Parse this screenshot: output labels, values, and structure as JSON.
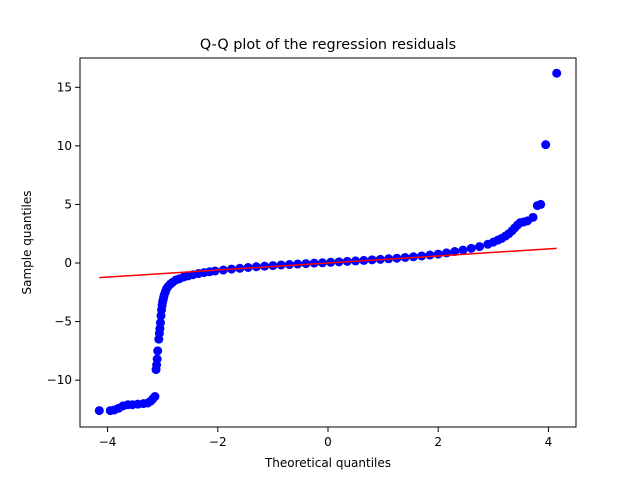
{
  "chart_data": {
    "type": "scatter",
    "title": "Q-Q plot of the regression residuals",
    "xlabel": "Theoretical quantiles",
    "ylabel": "Sample quantiles",
    "xlim": [
      -4.5,
      4.5
    ],
    "ylim": [
      -14.0,
      17.5
    ],
    "xticks": [
      -4,
      -2,
      0,
      2,
      4
    ],
    "xtick_labels": [
      "−4",
      "−2",
      "0",
      "2",
      "4"
    ],
    "yticks": [
      -10,
      -5,
      0,
      5,
      10,
      15
    ],
    "ytick_labels": [
      "−10",
      "−5",
      "0",
      "5",
      "10",
      "15"
    ],
    "grid": false,
    "legend": "none",
    "series": [
      {
        "kind": "scatter",
        "color": "#0000ff",
        "points": [
          [
            -4.15,
            -12.6
          ],
          [
            -3.95,
            -12.6
          ],
          [
            -3.88,
            -12.55
          ],
          [
            -3.8,
            -12.4
          ],
          [
            -3.72,
            -12.2
          ],
          [
            -3.63,
            -12.1
          ],
          [
            -3.55,
            -12.1
          ],
          [
            -3.45,
            -12.05
          ],
          [
            -3.35,
            -12.0
          ],
          [
            -3.27,
            -11.95
          ],
          [
            -3.22,
            -11.8
          ],
          [
            -3.18,
            -11.6
          ],
          [
            -3.14,
            -11.4
          ],
          [
            -3.12,
            -9.1
          ],
          [
            -3.11,
            -8.7
          ],
          [
            -3.1,
            -8.2
          ],
          [
            -3.09,
            -7.5
          ],
          [
            -3.07,
            -6.5
          ],
          [
            -3.06,
            -6.0
          ],
          [
            -3.05,
            -5.6
          ],
          [
            -3.04,
            -5.1
          ],
          [
            -3.03,
            -4.5
          ],
          [
            -3.02,
            -4.0
          ],
          [
            -3.01,
            -3.6
          ],
          [
            -3.0,
            -3.3
          ],
          [
            -2.99,
            -3.1
          ],
          [
            -2.98,
            -2.9
          ],
          [
            -2.97,
            -2.7
          ],
          [
            -2.95,
            -2.45
          ],
          [
            -2.93,
            -2.2
          ],
          [
            -2.9,
            -2.0
          ],
          [
            -2.86,
            -1.8
          ],
          [
            -2.82,
            -1.65
          ],
          [
            -2.76,
            -1.45
          ],
          [
            -2.7,
            -1.35
          ],
          [
            -2.62,
            -1.2
          ],
          [
            -2.54,
            -1.1
          ],
          [
            -2.45,
            -1.0
          ],
          [
            -2.35,
            -0.9
          ],
          [
            -2.25,
            -0.82
          ],
          [
            -2.15,
            -0.75
          ],
          [
            -2.05,
            -0.68
          ],
          [
            -1.9,
            -0.6
          ],
          [
            -1.75,
            -0.52
          ],
          [
            -1.6,
            -0.45
          ],
          [
            -1.45,
            -0.38
          ],
          [
            -1.3,
            -0.32
          ],
          [
            -1.15,
            -0.27
          ],
          [
            -1.0,
            -0.22
          ],
          [
            -0.85,
            -0.17
          ],
          [
            -0.7,
            -0.13
          ],
          [
            -0.55,
            -0.09
          ],
          [
            -0.4,
            -0.05
          ],
          [
            -0.25,
            -0.01
          ],
          [
            -0.1,
            0.02
          ],
          [
            0.05,
            0.06
          ],
          [
            0.2,
            0.1
          ],
          [
            0.35,
            0.14
          ],
          [
            0.5,
            0.18
          ],
          [
            0.65,
            0.22
          ],
          [
            0.8,
            0.27
          ],
          [
            0.95,
            0.31
          ],
          [
            1.1,
            0.36
          ],
          [
            1.25,
            0.41
          ],
          [
            1.4,
            0.47
          ],
          [
            1.55,
            0.53
          ],
          [
            1.7,
            0.6
          ],
          [
            1.85,
            0.68
          ],
          [
            2.0,
            0.76
          ],
          [
            2.15,
            0.86
          ],
          [
            2.3,
            0.98
          ],
          [
            2.45,
            1.1
          ],
          [
            2.6,
            1.25
          ],
          [
            2.75,
            1.4
          ],
          [
            2.9,
            1.6
          ],
          [
            3.0,
            1.78
          ],
          [
            3.08,
            1.95
          ],
          [
            3.15,
            2.1
          ],
          [
            3.22,
            2.3
          ],
          [
            3.28,
            2.5
          ],
          [
            3.34,
            2.75
          ],
          [
            3.39,
            3.0
          ],
          [
            3.44,
            3.25
          ],
          [
            3.49,
            3.45
          ],
          [
            3.55,
            3.5
          ],
          [
            3.62,
            3.6
          ],
          [
            3.72,
            3.9
          ],
          [
            3.8,
            4.9
          ],
          [
            3.86,
            5.0
          ],
          [
            3.95,
            10.1
          ],
          [
            4.15,
            16.2
          ]
        ]
      },
      {
        "kind": "line",
        "color": "#ff0000",
        "x": [
          -4.15,
          4.15
        ],
        "y": [
          -1.25,
          1.25
        ]
      }
    ]
  }
}
